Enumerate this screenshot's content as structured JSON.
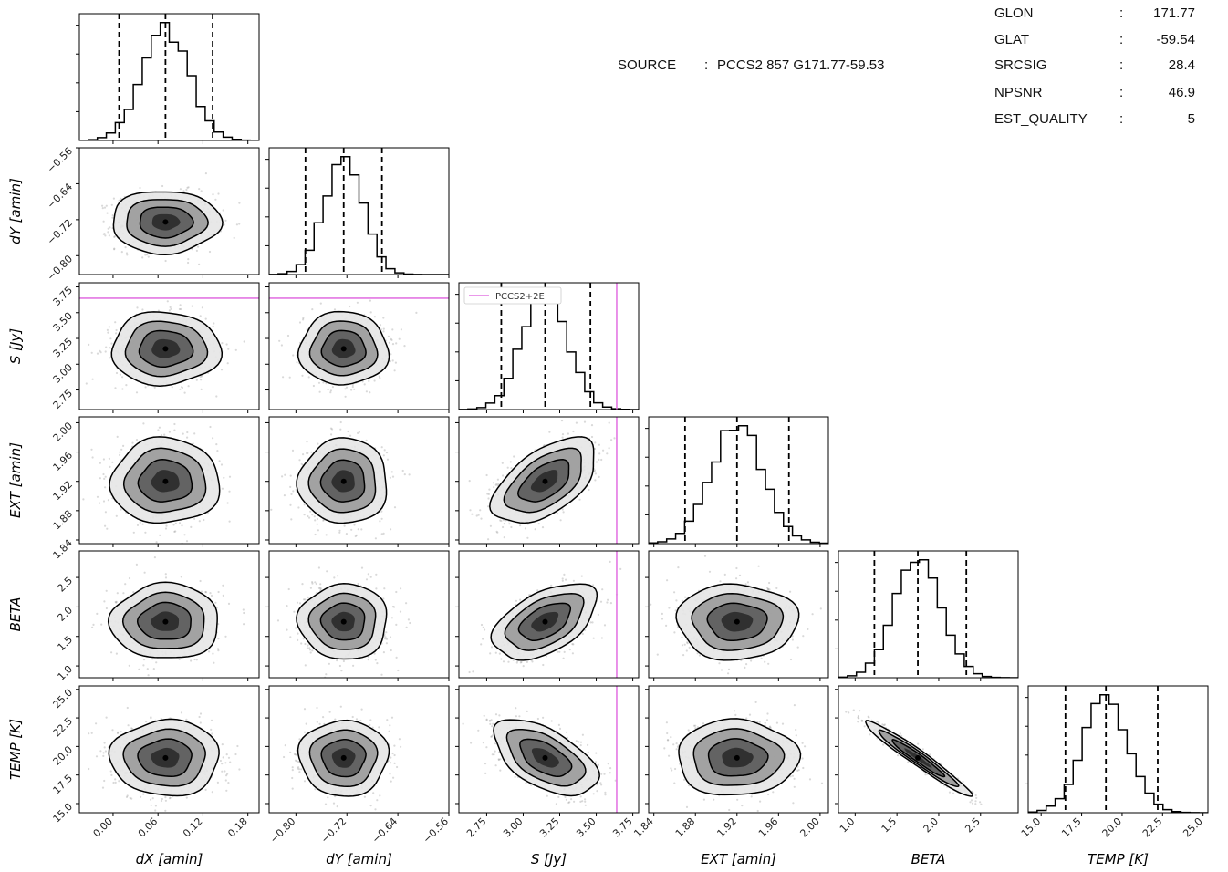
{
  "info": {
    "source_label": "SOURCE",
    "source_sep": ":",
    "source_value": "PCCS2 857 G171.77-59.53",
    "rows": [
      {
        "label": "GLON",
        "sep": ":",
        "value": "171.77"
      },
      {
        "label": "GLAT",
        "sep": ":",
        "value": "-59.54"
      },
      {
        "label": "SRCSIG",
        "sep": ":",
        "value": "28.4"
      },
      {
        "label": "NPSNR",
        "sep": ":",
        "value": "46.9"
      },
      {
        "label": "EST_QUALITY",
        "sep": ":",
        "value": "5"
      }
    ]
  },
  "chart_data": {
    "type": "corner",
    "parameters": [
      {
        "name": "dX",
        "label": "dX [amin]",
        "range": [
          -0.045,
          0.195
        ],
        "median": 0.07,
        "quantiles": [
          0.008,
          0.133
        ],
        "ticks": [
          0.0,
          0.06,
          0.12,
          0.18
        ],
        "tick_labels": [
          "0.00",
          "0.06",
          "0.12",
          "0.18"
        ]
      },
      {
        "name": "dY",
        "label": "dY [amin]",
        "range": [
          -0.842,
          -0.56
        ],
        "median": -0.725,
        "quantiles": [
          -0.785,
          -0.665
        ],
        "ticks": [
          -0.8,
          -0.72,
          -0.64,
          -0.56
        ],
        "tick_labels": [
          "−0.80",
          "−0.72",
          "−0.64",
          "−0.56"
        ]
      },
      {
        "name": "S",
        "label": "S [Jy]",
        "range": [
          2.56,
          3.79
        ],
        "median": 3.15,
        "quantiles": [
          2.85,
          3.46
        ],
        "ticks": [
          2.75,
          3.0,
          3.25,
          3.5,
          3.75
        ],
        "tick_labels": [
          "2.75",
          "3.00",
          "3.25",
          "3.50",
          "3.75"
        ]
      },
      {
        "name": "EXT",
        "label": "EXT [amin]",
        "range": [
          1.835,
          2.008
        ],
        "median": 1.92,
        "quantiles": [
          1.87,
          1.97
        ],
        "ticks": [
          1.84,
          1.88,
          1.92,
          1.96,
          2.0
        ],
        "tick_labels": [
          "1.84",
          "1.88",
          "1.92",
          "1.96",
          "2.00"
        ]
      },
      {
        "name": "BETA",
        "label": "BETA",
        "range": [
          0.8,
          2.95
        ],
        "median": 1.75,
        "quantiles": [
          1.23,
          2.33
        ],
        "ticks": [
          1.0,
          1.5,
          2.0,
          2.5
        ],
        "tick_labels": [
          "1.0",
          "1.5",
          "2.0",
          "2.5"
        ]
      },
      {
        "name": "TEMP",
        "label": "TEMP [K]",
        "range": [
          14.2,
          25.3
        ],
        "median": 19.0,
        "quantiles": [
          16.5,
          22.2
        ],
        "ticks": [
          15.0,
          17.5,
          20.0,
          22.5,
          25.0
        ],
        "tick_labels": [
          "15.0",
          "17.5",
          "20.0",
          "22.5",
          "25.0"
        ]
      }
    ],
    "reference": {
      "parameter": "S",
      "value": 3.64,
      "label": "PCCS2+2E",
      "color": "#e377e3"
    },
    "correlations": [
      {
        "pair": [
          "S",
          "EXT"
        ],
        "rho": 0.55
      },
      {
        "pair": [
          "S",
          "BETA"
        ],
        "rho": 0.5
      },
      {
        "pair": [
          "S",
          "TEMP"
        ],
        "rho": -0.55
      },
      {
        "pair": [
          "BETA",
          "TEMP"
        ],
        "rho": -0.97
      }
    ],
    "line_color": "#000000",
    "point_color": "#777777"
  }
}
